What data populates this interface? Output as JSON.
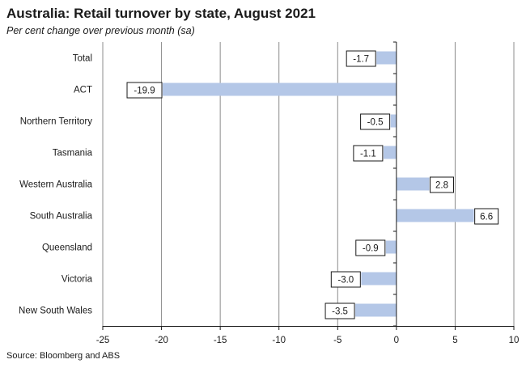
{
  "chart_data": {
    "type": "bar",
    "orientation": "horizontal",
    "title": "Australia: Retail turnover by state, August 2021",
    "subtitle": "Per cent change over previous month (sa)",
    "source": "Source: Bloomberg and ABS",
    "categories": [
      "Total",
      "ACT",
      "Northern Territory",
      "Tasmania",
      "Western Australia",
      "South Australia",
      "Queensland",
      "Victoria",
      "New South Wales"
    ],
    "values": [
      -1.7,
      -19.9,
      -0.5,
      -1.1,
      2.8,
      6.6,
      -0.9,
      -3.0,
      -3.5
    ],
    "data_labels": [
      "-1.7",
      "-19.9",
      "-0.5",
      "-1.1",
      "2.8",
      "6.6",
      "-0.9",
      "-3.0",
      "-3.5"
    ],
    "xlim": [
      -25,
      10
    ],
    "xticks": [
      -25,
      -20,
      -15,
      -10,
      -5,
      0,
      5,
      10
    ],
    "xtick_labels": [
      "-25",
      "-20",
      "-15",
      "-10",
      "-5",
      "0",
      "5",
      "10"
    ],
    "xlabel": "",
    "ylabel": "",
    "grid": "vertical",
    "legend": "none",
    "colors": {
      "bar": "#b4c7e7",
      "grid": "#8c8c8c",
      "axis": "#1a1a1a",
      "label_border": "#1a1a1a"
    }
  }
}
